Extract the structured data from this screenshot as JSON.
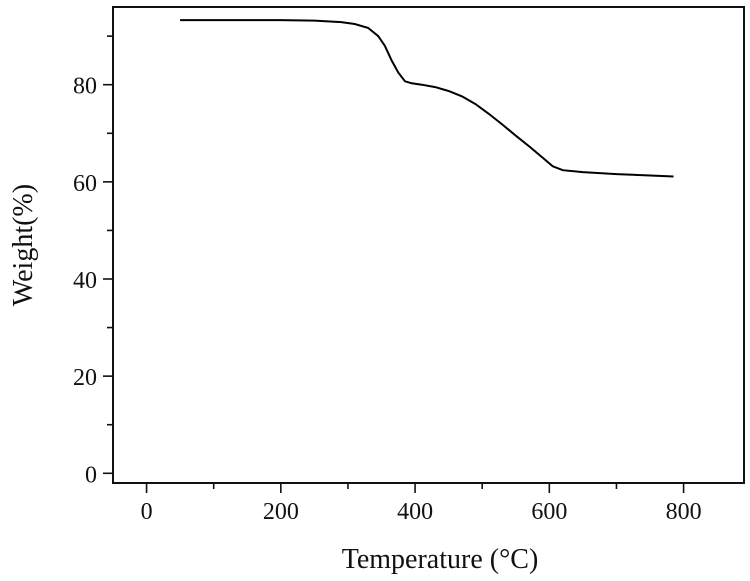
{
  "chart_data": {
    "type": "line",
    "title": "",
    "xlabel": "Temperature (°C)",
    "ylabel": "Weight(%)",
    "xlim": [
      -50,
      890
    ],
    "ylim": [
      -2,
      96
    ],
    "xticks": [
      0,
      200,
      400,
      600,
      800
    ],
    "yticks": [
      0,
      20,
      40,
      60,
      80
    ],
    "x_minor_ticks": [
      100,
      300,
      500,
      700
    ],
    "y_minor_ticks": [
      10,
      30,
      50,
      70,
      90
    ],
    "grid": false,
    "legend": "none",
    "series": [
      {
        "color": "#000000",
        "points": [
          [
            50,
            93.3
          ],
          [
            100,
            93.3
          ],
          [
            150,
            93.3
          ],
          [
            200,
            93.3
          ],
          [
            250,
            93.2
          ],
          [
            290,
            92.9
          ],
          [
            310,
            92.5
          ],
          [
            330,
            91.7
          ],
          [
            345,
            90.0
          ],
          [
            355,
            88.0
          ],
          [
            365,
            85.0
          ],
          [
            375,
            82.5
          ],
          [
            385,
            80.7
          ],
          [
            395,
            80.3
          ],
          [
            410,
            80.0
          ],
          [
            430,
            79.5
          ],
          [
            450,
            78.7
          ],
          [
            470,
            77.6
          ],
          [
            490,
            76.0
          ],
          [
            510,
            74.0
          ],
          [
            530,
            71.8
          ],
          [
            550,
            69.5
          ],
          [
            570,
            67.3
          ],
          [
            590,
            65.0
          ],
          [
            605,
            63.2
          ],
          [
            620,
            62.4
          ],
          [
            650,
            62.0
          ],
          [
            700,
            61.6
          ],
          [
            750,
            61.3
          ],
          [
            785,
            61.1
          ]
        ]
      }
    ]
  }
}
